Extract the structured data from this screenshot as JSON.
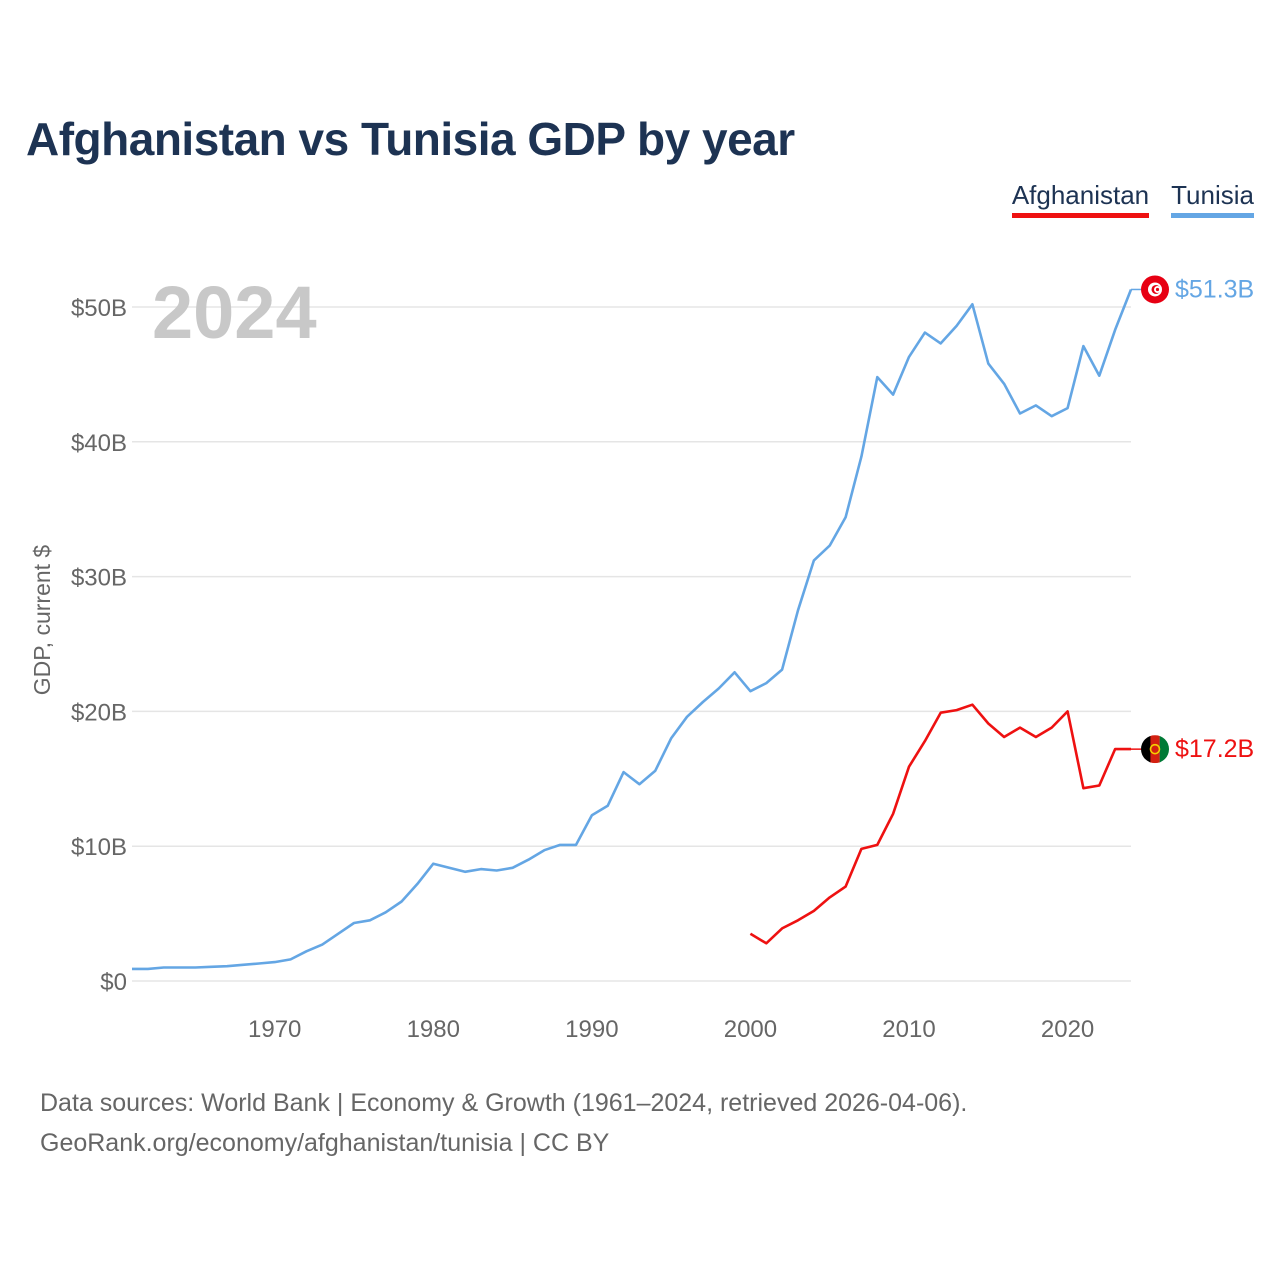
{
  "title": "Afghanistan vs Tunisia GDP by year",
  "legend": {
    "afghanistan": "Afghanistan",
    "tunisia": "Tunisia"
  },
  "year_watermark": "2024",
  "source": {
    "line1": "Data sources: World Bank | Economy & Growth (1961–2024, retrieved 2026-04-06).",
    "line2": "GeoRank.org/economy/afghanistan/tunisia | CC BY"
  },
  "colors": {
    "afghanistan": "#ee1111",
    "tunisia": "#64a6e4",
    "title": "#1d3353",
    "grid": "#e5e5e5",
    "axis_text": "#666666",
    "watermark": "#c8c8c8"
  },
  "chart_data": {
    "type": "line",
    "title": "Afghanistan vs Tunisia GDP by year",
    "ylabel": "GDP, current $",
    "xlabel": "",
    "xlim": [
      1961,
      2024
    ],
    "ylim": [
      -1,
      52.5
    ],
    "y_unit": "billion current US$",
    "x_ticks": [
      1970,
      1980,
      1990,
      2000,
      2010,
      2020
    ],
    "x_tick_labels": [
      "1970",
      "1980",
      "1990",
      "2000",
      "2010",
      "2020"
    ],
    "y_ticks": [
      0,
      10,
      20,
      30,
      40,
      50
    ],
    "y_tick_labels": [
      "$0",
      "$10B",
      "$20B",
      "$30B",
      "$40B",
      "$50B"
    ],
    "grid": true,
    "legend_position": "top-right",
    "series": [
      {
        "name": "Tunisia",
        "color": "#64a6e4",
        "end_label": "$51.3B",
        "flag": "tunisia-flag",
        "x": [
          1961,
          1962,
          1963,
          1964,
          1965,
          1966,
          1967,
          1968,
          1969,
          1970,
          1971,
          1972,
          1973,
          1974,
          1975,
          1976,
          1977,
          1978,
          1979,
          1980,
          1981,
          1982,
          1983,
          1984,
          1985,
          1986,
          1987,
          1988,
          1989,
          1990,
          1991,
          1992,
          1993,
          1994,
          1995,
          1996,
          1997,
          1998,
          1999,
          2000,
          2001,
          2002,
          2003,
          2004,
          2005,
          2006,
          2007,
          2008,
          2009,
          2010,
          2011,
          2012,
          2013,
          2014,
          2015,
          2016,
          2017,
          2018,
          2019,
          2020,
          2021,
          2022,
          2023,
          2024
        ],
        "values": [
          0.9,
          0.9,
          1.0,
          1.0,
          1.0,
          1.05,
          1.1,
          1.2,
          1.3,
          1.4,
          1.6,
          2.2,
          2.7,
          3.5,
          4.3,
          4.5,
          5.1,
          5.9,
          7.2,
          8.7,
          8.4,
          8.1,
          8.3,
          8.2,
          8.4,
          9.0,
          9.7,
          10.1,
          10.1,
          12.3,
          13.0,
          15.5,
          14.6,
          15.6,
          18.0,
          19.6,
          20.7,
          21.7,
          22.9,
          21.5,
          22.1,
          23.1,
          27.5,
          31.2,
          32.3,
          34.4,
          38.9,
          44.8,
          43.5,
          46.3,
          48.1,
          47.3,
          48.6,
          50.2,
          45.8,
          44.3,
          42.1,
          42.7,
          41.9,
          42.5,
          47.1,
          44.9,
          48.3,
          51.3
        ]
      },
      {
        "name": "Afghanistan",
        "color": "#ee1111",
        "end_label": "$17.2B",
        "flag": "afghanistan-flag",
        "x": [
          2000,
          2001,
          2002,
          2003,
          2004,
          2005,
          2006,
          2007,
          2008,
          2009,
          2010,
          2011,
          2012,
          2013,
          2014,
          2015,
          2016,
          2017,
          2018,
          2019,
          2020,
          2021,
          2022,
          2023,
          2024
        ],
        "values": [
          3.5,
          2.8,
          3.9,
          4.5,
          5.2,
          6.2,
          7.0,
          9.8,
          10.1,
          12.4,
          15.9,
          17.8,
          19.9,
          20.1,
          20.5,
          19.1,
          18.1,
          18.8,
          18.1,
          18.8,
          20.0,
          14.3,
          14.5,
          17.2,
          17.2
        ]
      }
    ]
  }
}
